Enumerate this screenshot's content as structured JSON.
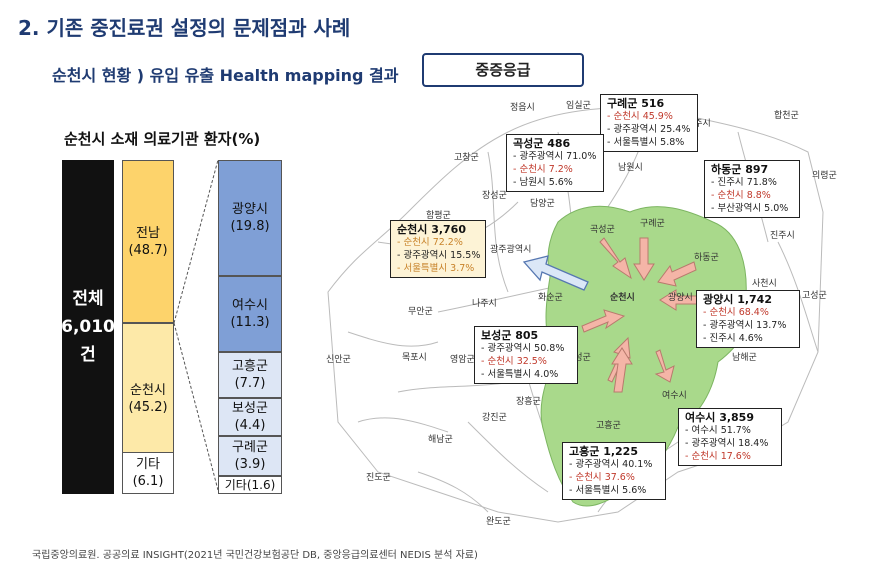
{
  "header": {
    "title": "2. 기존 중진료권 설정의 문제점과 사례",
    "subtitle": "순천시 현황 ) 유입 유출 Health mapping 결과",
    "badge": "중증응급"
  },
  "chart": {
    "title": "순천시 소재 의료기관 환자(%)",
    "total": {
      "line1": "전체",
      "line2": "6,010",
      "line3": "건"
    },
    "by_region": [
      {
        "label": "전남",
        "value": "(48.7)",
        "pct": 48.7
      },
      {
        "label": "순천시",
        "value": "(45.2)",
        "pct": 45.2
      },
      {
        "label": "기타",
        "value": "(6.1)",
        "pct": 6.1
      }
    ],
    "by_city": [
      {
        "label": "광양시",
        "value": "(19.8)",
        "pct": 19.8
      },
      {
        "label": "여수시",
        "value": "(11.3)",
        "pct": 11.3
      },
      {
        "label": "고흥군",
        "value": "(7.7)",
        "pct": 7.7
      },
      {
        "label": "보성군",
        "value": "(4.4)",
        "pct": 4.4
      },
      {
        "label": "구례군",
        "value": "(3.9)",
        "pct": 3.9
      },
      {
        "label": "기타(1.6)",
        "value": "",
        "pct": 1.6
      }
    ]
  },
  "map": {
    "towns": [
      "정읍시",
      "임실군",
      "고창군",
      "전주시",
      "남원시",
      "합천군",
      "장성군",
      "담양군",
      "곡성군",
      "구례군",
      "함평군",
      "광주광역시",
      "하동군",
      "진주시",
      "의령군",
      "사천시",
      "고성군",
      "나주시",
      "화순군",
      "순천시",
      "광양시",
      "무안군",
      "신안군",
      "영암군",
      "보성군",
      "남해군",
      "목포시",
      "장흥군",
      "여수시",
      "강진군",
      "해남군",
      "고흥군",
      "진도군",
      "완도군"
    ],
    "callouts": {
      "guryeo": {
        "title": "구례군 516",
        "lines": [
          {
            "text": "- 순천시 45.9%",
            "highlight": true
          },
          {
            "text": "- 광주광역시 25.4%",
            "highlight": false
          },
          {
            "text": "- 서울특별시 5.8%",
            "highlight": false
          }
        ]
      },
      "gokseong": {
        "title": "곡성군 486",
        "lines": [
          {
            "text": "- 광주광역시 71.0%",
            "highlight": false
          },
          {
            "text": "- 순천시 7.2%",
            "highlight": true
          },
          {
            "text": "- 남원시 5.6%",
            "highlight": false
          }
        ]
      },
      "hadong": {
        "title": "하동군 897",
        "lines": [
          {
            "text": "- 진주시 71.8%",
            "highlight": false
          },
          {
            "text": "- 순천시 8.8%",
            "highlight": true
          },
          {
            "text": "- 부산광역시 5.0%",
            "highlight": false
          }
        ]
      },
      "suncheon": {
        "title": "순천시 3,760",
        "lines": [
          {
            "text": "- 순천시 72.2%",
            "highlight": true
          },
          {
            "text": "- 광주광역시 15.5%",
            "highlight": false
          },
          {
            "text": "- 서울특별시 3.7%",
            "highlight": true
          }
        ]
      },
      "gwangyang": {
        "title": "광양시 1,742",
        "lines": [
          {
            "text": "- 순천시 68.4%",
            "highlight": true
          },
          {
            "text": "- 광주광역시 13.7%",
            "highlight": false
          },
          {
            "text": "- 진주시 4.6%",
            "highlight": false
          }
        ]
      },
      "boseong": {
        "title": "보성군 805",
        "lines": [
          {
            "text": "- 광주광역시 50.8%",
            "highlight": false
          },
          {
            "text": "- 순천시 32.5%",
            "highlight": true
          },
          {
            "text": "- 서울특별시 4.0%",
            "highlight": false
          }
        ]
      },
      "yeosu": {
        "title": "여수시 3,859",
        "lines": [
          {
            "text": "- 여수시 51.7%",
            "highlight": false
          },
          {
            "text": "- 광주광역시 18.4%",
            "highlight": false
          },
          {
            "text": "- 순천시 17.6%",
            "highlight": true
          }
        ]
      },
      "goheung": {
        "title": "고흥군 1,225",
        "lines": [
          {
            "text": "- 광주광역시 40.1%",
            "highlight": false
          },
          {
            "text": "- 순천시 37.6%",
            "highlight": true
          },
          {
            "text": "- 서울특별시 5.6%",
            "highlight": false
          }
        ]
      }
    }
  },
  "source": "국립중앙의료원. 공공의료 INSIGHT(2021년 국민건강보험공단 DB, 중앙응급의료센터 NEDIS 분석 자료)",
  "colors": {
    "navy": "#1f3b72",
    "yellow": "#fdd36b",
    "light_yellow": "#fde9a8",
    "blue": "#7f9fd6",
    "light_blue": "#dde6f5",
    "green": "#a9d98b",
    "highlight_red": "#c0392b"
  }
}
